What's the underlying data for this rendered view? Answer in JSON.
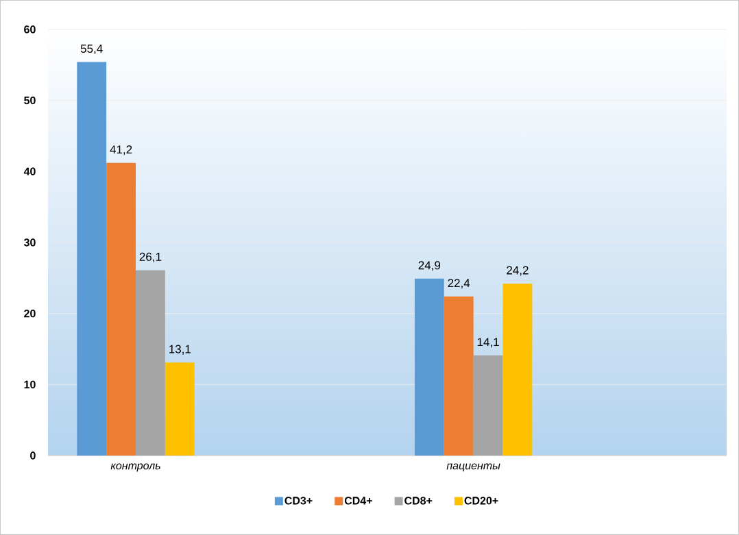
{
  "chart_data": {
    "type": "bar",
    "categories": [
      "контроль",
      "пациенты"
    ],
    "series": [
      {
        "name": "CD3+",
        "color": "#5b9bd5",
        "values": [
          55.4,
          24.9
        ],
        "value_labels": [
          "55,4",
          "24,9"
        ]
      },
      {
        "name": "CD4+",
        "color": "#ed7d31",
        "values": [
          41.2,
          22.4
        ],
        "value_labels": [
          "41,2",
          "22,4"
        ]
      },
      {
        "name": "CD8+",
        "color": "#a5a5a5",
        "values": [
          26.1,
          14.1
        ],
        "value_labels": [
          "26,1",
          "14,1"
        ]
      },
      {
        "name": "CD20+",
        "color": "#ffc000",
        "values": [
          13.1,
          24.2
        ],
        "value_labels": [
          "13,1",
          "24,2"
        ]
      }
    ],
    "ylim": [
      0,
      60
    ],
    "yticks": [
      0,
      10,
      20,
      30,
      40,
      50,
      60
    ],
    "grid": "y",
    "legend": "bottom"
  }
}
